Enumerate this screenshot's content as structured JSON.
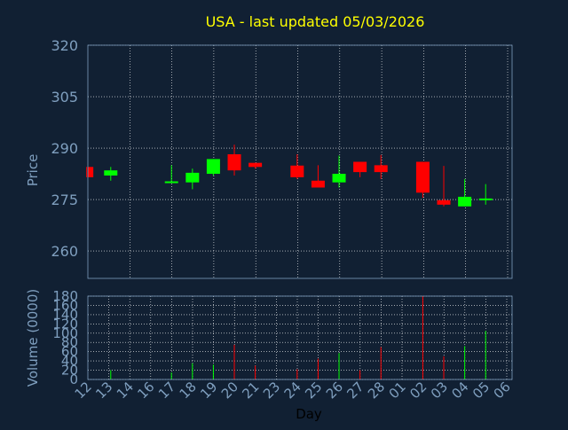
{
  "chart_data": [
    {
      "type": "candlestick",
      "title": "USA - last updated 05/03/2026",
      "ylabel": "Price",
      "ylim": [
        252,
        320
      ],
      "yticks": [
        260,
        275,
        290,
        305,
        320
      ],
      "grid": true,
      "colors": {
        "up": "#00ff00",
        "down": "#ff0000",
        "title": "#ffff00",
        "axis_text": "#7f9fbf",
        "grid": "#ffffff",
        "background": "#112033"
      },
      "x_slots": [
        "12",
        "13",
        "14",
        "16",
        "17",
        "18",
        "19",
        "20",
        "21",
        "23",
        "24",
        "25",
        "26",
        "27",
        "28",
        "01",
        "02",
        "03",
        "04",
        "05",
        "06"
      ],
      "candles": [
        {
          "pos": -0.1,
          "open": 284.5,
          "close": 281.5,
          "high": 284.5,
          "low": 281.5
        },
        {
          "pos": 1.05,
          "open": 282.0,
          "close": 283.5,
          "high": 284.5,
          "low": 280.5
        },
        {
          "pos": 3.95,
          "open": 280.0,
          "close": 280.3,
          "high": 285.0,
          "low": 280.0
        },
        {
          "pos": 4.95,
          "open": 280.0,
          "close": 282.8,
          "high": 284.0,
          "low": 278.0
        },
        {
          "pos": 5.95,
          "open": 282.5,
          "close": 286.8,
          "high": 286.8,
          "low": 282.0
        },
        {
          "pos": 6.95,
          "open": 288.2,
          "close": 283.5,
          "high": 291.0,
          "low": 282.0
        },
        {
          "pos": 7.95,
          "open": 285.7,
          "close": 284.5,
          "high": 285.7,
          "low": 284.0
        },
        {
          "pos": 9.95,
          "open": 284.9,
          "close": 281.5,
          "high": 288.2,
          "low": 281.0
        },
        {
          "pos": 10.95,
          "open": 280.5,
          "close": 278.5,
          "high": 285.0,
          "low": 278.5
        },
        {
          "pos": 11.95,
          "open": 280.0,
          "close": 282.5,
          "high": 287.8,
          "low": 278.5
        },
        {
          "pos": 12.95,
          "open": 286.0,
          "close": 283.0,
          "high": 286.0,
          "low": 281.5
        },
        {
          "pos": 13.95,
          "open": 285.0,
          "close": 283.0,
          "high": 288.0,
          "low": 281.0
        },
        {
          "pos": 15.95,
          "open": 286.0,
          "close": 277.0,
          "high": 286.0,
          "low": 275.5
        },
        {
          "pos": 16.95,
          "open": 274.8,
          "close": 273.5,
          "high": 284.8,
          "low": 273.0
        },
        {
          "pos": 17.95,
          "open": 273.0,
          "close": 275.8,
          "high": 281.0,
          "low": 273.0
        },
        {
          "pos": 18.95,
          "open": 275.0,
          "close": 275.3,
          "high": 279.5,
          "low": 273.5
        }
      ]
    },
    {
      "type": "bar",
      "ylabel": "Volume (0000)",
      "xlabel": "Day",
      "ylim": [
        0,
        180
      ],
      "yticks": [
        0,
        20,
        40,
        60,
        80,
        100,
        120,
        140,
        160,
        180
      ],
      "categories": [
        "12",
        "13",
        "14",
        "16",
        "17",
        "18",
        "19",
        "20",
        "21",
        "23",
        "24",
        "25",
        "26",
        "27",
        "28",
        "01",
        "02",
        "03",
        "04",
        "05",
        "06"
      ],
      "volume_bars": [
        {
          "pos": 1.05,
          "value": 20,
          "up": true
        },
        {
          "pos": 3.95,
          "value": 15,
          "up": true
        },
        {
          "pos": 4.95,
          "value": 35,
          "up": true
        },
        {
          "pos": 5.95,
          "value": 32,
          "up": true
        },
        {
          "pos": 6.95,
          "value": 75,
          "up": false
        },
        {
          "pos": 7.95,
          "value": 30,
          "up": false
        },
        {
          "pos": 9.95,
          "value": 22,
          "up": false
        },
        {
          "pos": 10.95,
          "value": 45,
          "up": false
        },
        {
          "pos": 11.95,
          "value": 57,
          "up": true
        },
        {
          "pos": 12.95,
          "value": 20,
          "up": false
        },
        {
          "pos": 13.95,
          "value": 70,
          "up": false
        },
        {
          "pos": 15.95,
          "value": 180,
          "up": false
        },
        {
          "pos": 16.95,
          "value": 50,
          "up": false
        },
        {
          "pos": 17.95,
          "value": 72,
          "up": true
        },
        {
          "pos": 18.95,
          "value": 105,
          "up": true
        }
      ]
    }
  ]
}
